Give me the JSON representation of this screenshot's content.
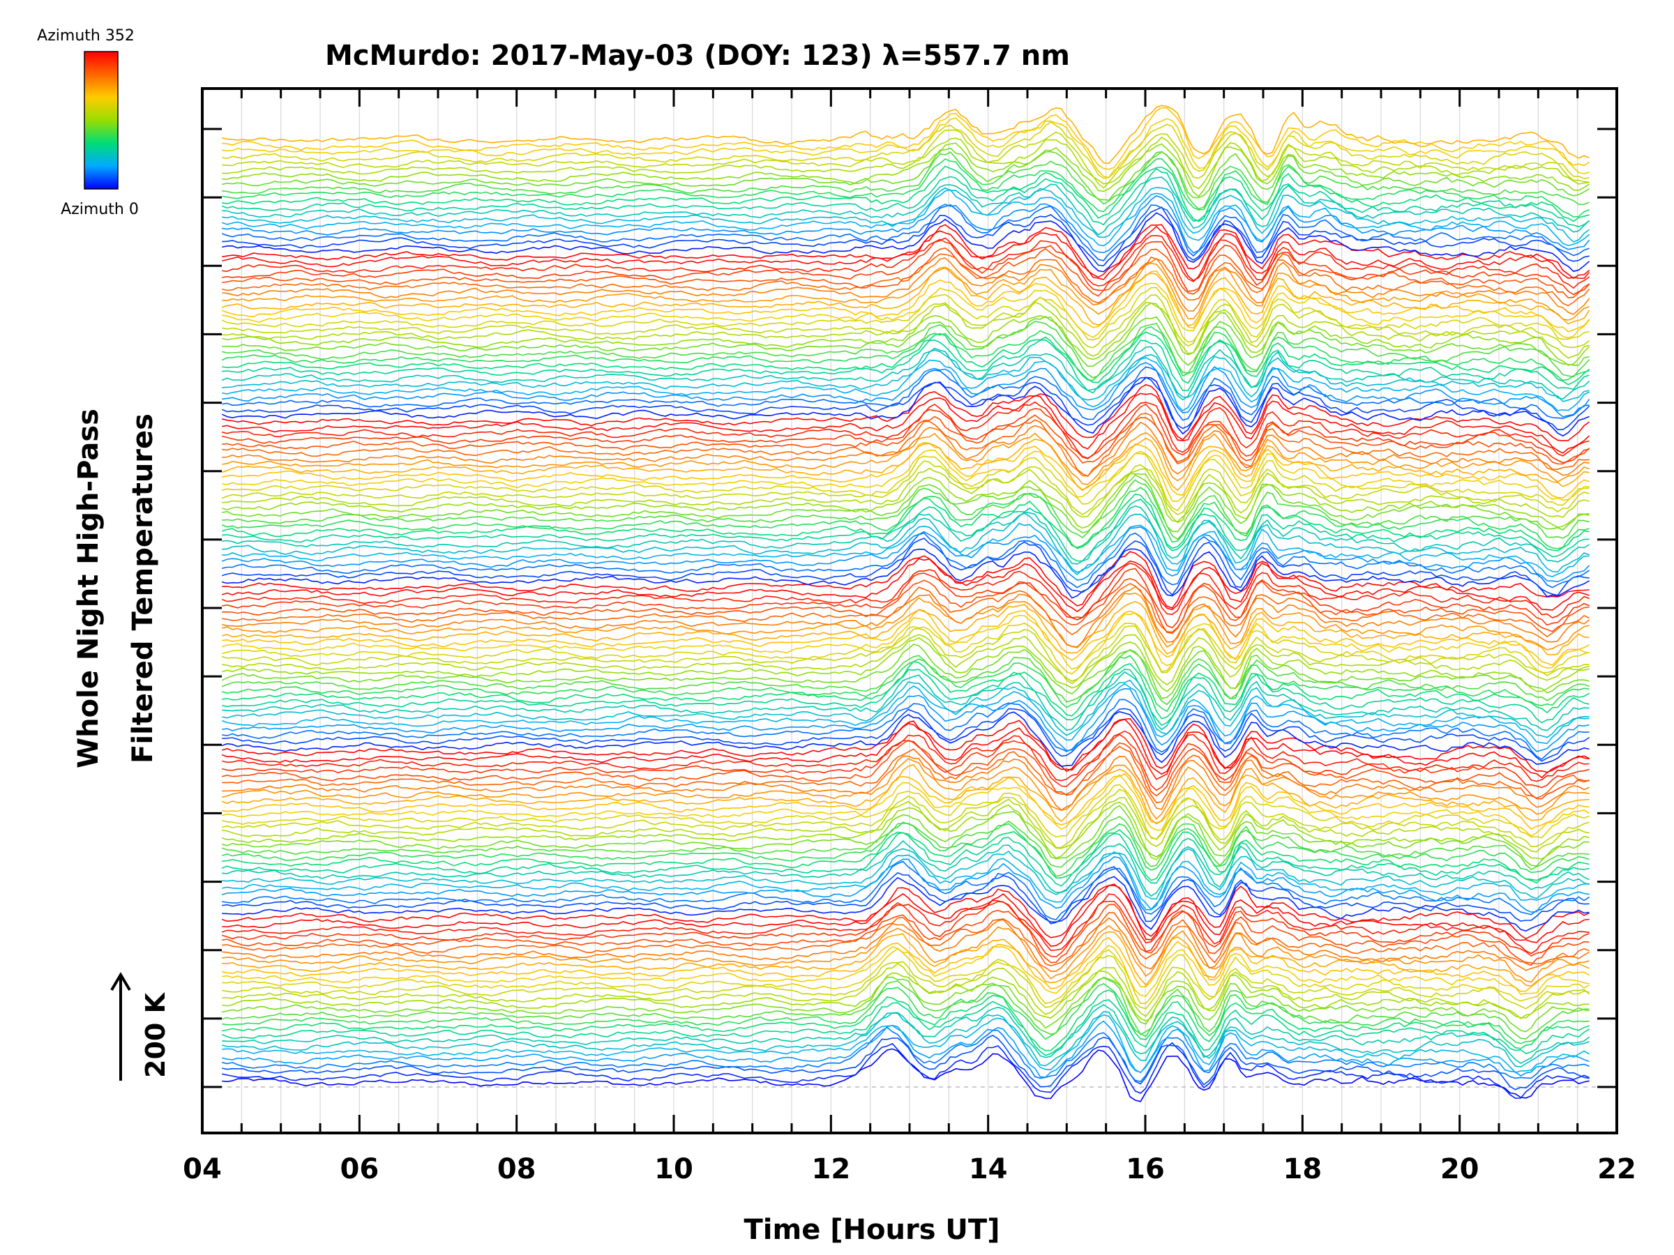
{
  "chart_data": {
    "type": "line",
    "title": "McMurdo: 2017-May-03 (DOY: 123) λ=557.7 nm",
    "xlabel": "Time [Hours UT]",
    "ylabel_lines": [
      "Whole Night High-Pass",
      "Filtered Temperatures"
    ],
    "xlim": [
      4,
      22
    ],
    "x_ticks": [
      4,
      6,
      8,
      10,
      12,
      14,
      16,
      18,
      20,
      22
    ],
    "x_tick_labels": [
      "04",
      "06",
      "08",
      "10",
      "12",
      "14",
      "16",
      "18",
      "20",
      "22"
    ],
    "x_minor_step": 0.5,
    "data_start_hour": 4.25,
    "data_end_hour": 21.65,
    "samples_per_trace": 260,
    "y_major_ticks": 15,
    "grid": "vertical lines every 0.5 h",
    "scale_bar": {
      "label": "200 K",
      "value_K": 200
    },
    "colorbar": {
      "top_label": "Azimuth 352",
      "bottom_label": "Azimuth 0",
      "min_azimuth": 0,
      "max_azimuth": 352,
      "colors": [
        "#0000ff",
        "#00aaff",
        "#00dd77",
        "#99dd00",
        "#ffcc00",
        "#ff6600",
        "#ff0000"
      ]
    },
    "trace_layout": {
      "n_traces": 155,
      "groups": 6,
      "azimuth_step_per_trace": 13.5,
      "group_offset_azimuth": 0
    },
    "wave_events": [
      {
        "hour": 12.75,
        "amplitude_K": 60,
        "width_h": 0.22
      },
      {
        "hour": 13.55,
        "amplitude_K": 25,
        "width_h": 0.15
      },
      {
        "hour": 14.05,
        "amplitude_K": 55,
        "width_h": 0.22
      },
      {
        "hour": 14.7,
        "amplitude_K": -35,
        "width_h": 0.15
      },
      {
        "hour": 15.45,
        "amplitude_K": 65,
        "width_h": 0.22
      },
      {
        "hour": 15.9,
        "amplitude_K": -45,
        "width_h": 0.15
      },
      {
        "hour": 16.35,
        "amplitude_K": 50,
        "width_h": 0.2
      },
      {
        "hour": 16.75,
        "amplitude_K": -30,
        "width_h": 0.15
      },
      {
        "hour": 17.05,
        "amplitude_K": 50,
        "width_h": 0.12
      },
      {
        "hour": 17.5,
        "amplitude_K": 25,
        "width_h": 0.18
      },
      {
        "hour": 20.75,
        "amplitude_K": -35,
        "width_h": 0.18
      }
    ]
  }
}
